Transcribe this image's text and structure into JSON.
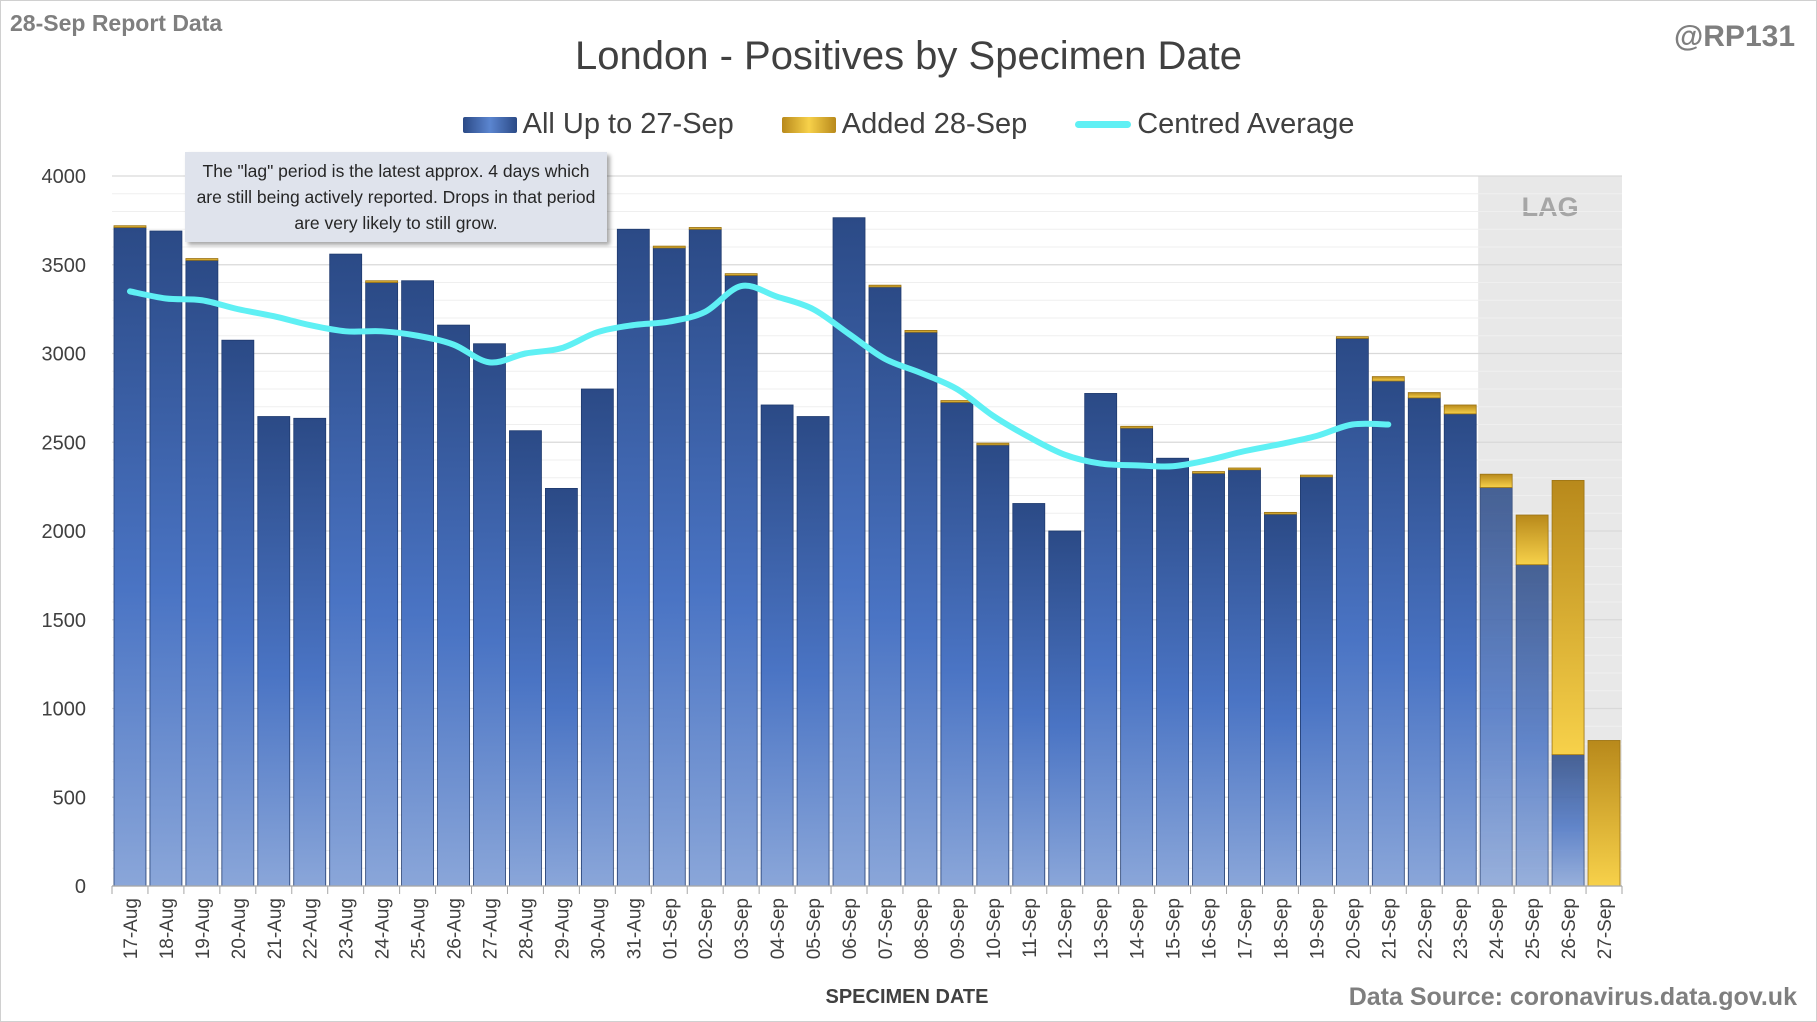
{
  "header": {
    "report_label": "28-Sep Report Data",
    "handle": "@RP131",
    "source": "Data Source: coronavirus.data.gov.uk"
  },
  "note": "The \"lag\" period is the latest approx. 4 days which are still being actively reported.  Drops in that period are very likely to still grow.",
  "colors": {
    "base_top": "#2b4a86",
    "base_bottom": "#8aa6d9",
    "added_top": "#b8891b",
    "added_bottom": "#f7d14a",
    "average_line": "#5ff0f4",
    "lag_shade": "#e8e8e8",
    "lag_text": "#a6a6a6",
    "grid": "#d9d9d9"
  },
  "chart_data": {
    "type": "bar",
    "stacked": true,
    "title": "London - Positives by Specimen Date",
    "xlabel": "SPECIMEN DATE",
    "ylabel": "",
    "ylim": [
      0,
      4000
    ],
    "yticks": [
      0,
      500,
      1000,
      1500,
      2000,
      2500,
      3000,
      3500,
      4000
    ],
    "legend_position": "top",
    "categories": [
      "17-Aug",
      "18-Aug",
      "19-Aug",
      "20-Aug",
      "21-Aug",
      "22-Aug",
      "23-Aug",
      "24-Aug",
      "25-Aug",
      "26-Aug",
      "27-Aug",
      "28-Aug",
      "29-Aug",
      "30-Aug",
      "31-Aug",
      "01-Sep",
      "02-Sep",
      "03-Sep",
      "04-Sep",
      "05-Sep",
      "06-Sep",
      "07-Sep",
      "08-Sep",
      "09-Sep",
      "10-Sep",
      "11-Sep",
      "12-Sep",
      "13-Sep",
      "14-Sep",
      "15-Sep",
      "16-Sep",
      "17-Sep",
      "18-Sep",
      "19-Sep",
      "20-Sep",
      "21-Sep",
      "22-Sep",
      "23-Sep",
      "24-Sep",
      "25-Sep",
      "26-Sep",
      "27-Sep"
    ],
    "series": [
      {
        "name": "All Up to 27-Sep",
        "kind": "bar",
        "values": [
          3710,
          3690,
          3525,
          3075,
          2645,
          2635,
          3560,
          3400,
          3410,
          3160,
          3055,
          2565,
          2240,
          2800,
          3700,
          3595,
          3700,
          3440,
          2710,
          2645,
          3765,
          3375,
          3120,
          2725,
          2485,
          2155,
          2000,
          2775,
          2580,
          2410,
          2325,
          2345,
          2095,
          2305,
          3085,
          2845,
          2750,
          2660,
          2245,
          1810,
          740,
          0
        ]
      },
      {
        "name": "Added 28-Sep",
        "kind": "bar",
        "values": [
          10,
          0,
          10,
          0,
          0,
          0,
          0,
          10,
          0,
          0,
          0,
          0,
          0,
          0,
          0,
          10,
          10,
          10,
          0,
          0,
          0,
          10,
          10,
          10,
          10,
          0,
          0,
          0,
          10,
          0,
          10,
          10,
          10,
          10,
          10,
          25,
          30,
          50,
          75,
          280,
          1545,
          820
        ]
      },
      {
        "name": "Centred Average",
        "kind": "line",
        "values": [
          3350,
          3310,
          3300,
          3250,
          3210,
          3160,
          3125,
          3125,
          3100,
          3050,
          2950,
          3000,
          3030,
          3120,
          3160,
          3180,
          3235,
          3380,
          3320,
          3250,
          3110,
          2970,
          2890,
          2800,
          2650,
          2530,
          2430,
          2380,
          2370,
          2365,
          2400,
          2450,
          2490,
          2535,
          2600,
          2600,
          null,
          null,
          null,
          null,
          null,
          null
        ]
      }
    ],
    "lag": {
      "label": "LAG",
      "start_category": "24-Sep",
      "end_category": "27-Sep"
    }
  }
}
